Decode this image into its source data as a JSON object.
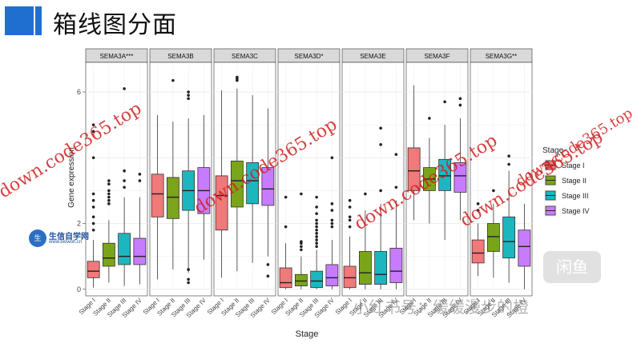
{
  "page": {
    "title": "箱线图分面"
  },
  "chart_data": {
    "type": "boxplot",
    "xlabel": "Stage",
    "ylabel": "Gene expression",
    "ylim": [
      -0.2,
      6.9
    ],
    "yticks": [
      0,
      2,
      6
    ],
    "categories": [
      "Stage I",
      "Stage II",
      "Stage III",
      "Stage IV"
    ],
    "legend": {
      "title": "Stage",
      "position": "right",
      "entries": [
        "Stage I",
        "Stage II",
        "Stage III",
        "Stage IV"
      ]
    },
    "colors": {
      "Stage I": "#f0797a",
      "Stage II": "#7aa51a",
      "Stage III": "#1cb7be",
      "Stage IV": "#c77cff"
    },
    "facets": [
      {
        "name": "SEMA3A***",
        "boxes": [
          {
            "stage": "Stage I",
            "lo": 0.05,
            "q1": 0.35,
            "med": 0.55,
            "q3": 0.85,
            "hi": 1.5,
            "outliers": [
              1.8,
              2.0,
              2.2,
              2.5,
              2.7,
              2.9,
              4.0,
              4.8,
              5.0
            ]
          },
          {
            "stage": "Stage II",
            "lo": 0.2,
            "q1": 0.7,
            "med": 0.95,
            "q3": 1.4,
            "hi": 2.1,
            "outliers": [
              2.6,
              2.7,
              2.8,
              2.9,
              3.0,
              3.2,
              3.3
            ]
          },
          {
            "stage": "Stage III",
            "lo": 0.1,
            "q1": 0.75,
            "med": 1.0,
            "q3": 1.7,
            "hi": 2.8,
            "outliers": [
              3.1,
              3.3,
              3.6,
              6.1
            ]
          },
          {
            "stage": "Stage IV",
            "lo": 0.15,
            "q1": 0.75,
            "med": 1.0,
            "q3": 1.55,
            "hi": 2.8,
            "outliers": [
              3.3,
              3.5
            ]
          }
        ]
      },
      {
        "name": "SEMA3B",
        "boxes": [
          {
            "stage": "Stage I",
            "lo": 0.3,
            "q1": 2.2,
            "med": 2.9,
            "q3": 3.5,
            "hi": 5.3,
            "outliers": []
          },
          {
            "stage": "Stage II",
            "lo": 0.6,
            "q1": 2.15,
            "med": 2.8,
            "q3": 3.4,
            "hi": 5.1,
            "outliers": [
              6.35
            ]
          },
          {
            "stage": "Stage III",
            "lo": 0.5,
            "q1": 2.4,
            "med": 3.0,
            "q3": 3.6,
            "hi": 5.2,
            "outliers": [
              0.2,
              0.3,
              0.6,
              5.8,
              5.9,
              6.0
            ]
          },
          {
            "stage": "Stage IV",
            "lo": 0.9,
            "q1": 2.3,
            "med": 3.0,
            "q3": 3.7,
            "hi": 5.3,
            "outliers": []
          }
        ]
      },
      {
        "name": "SEMA3C",
        "boxes": [
          {
            "stage": "Stage I",
            "lo": 0.35,
            "q1": 1.8,
            "med": 2.85,
            "q3": 3.45,
            "hi": 6.05,
            "outliers": []
          },
          {
            "stage": "Stage II",
            "lo": 0.55,
            "q1": 2.5,
            "med": 3.3,
            "q3": 3.9,
            "hi": 6.1,
            "outliers": [
              6.35,
              6.4,
              6.45
            ]
          },
          {
            "stage": "Stage III",
            "lo": 0.8,
            "q1": 2.6,
            "med": 3.3,
            "q3": 3.85,
            "hi": 5.9,
            "outliers": []
          },
          {
            "stage": "Stage IV",
            "lo": 1.0,
            "q1": 2.55,
            "med": 3.05,
            "q3": 3.7,
            "hi": 5.5,
            "outliers": [
              0.75,
              0.4
            ]
          }
        ]
      },
      {
        "name": "SEMA3D*",
        "boxes": [
          {
            "stage": "Stage I",
            "lo": 0.0,
            "q1": 0.05,
            "med": 0.2,
            "q3": 0.65,
            "hi": 1.4,
            "outliers": [
              1.9,
              2.8
            ]
          },
          {
            "stage": "Stage II",
            "lo": 0.0,
            "q1": 0.1,
            "med": 0.25,
            "q3": 0.45,
            "hi": 1.0,
            "outliers": [
              1.2,
              1.3,
              1.4,
              1.45,
              2.9
            ]
          },
          {
            "stage": "Stage III",
            "lo": 0.0,
            "q1": 0.05,
            "med": 0.25,
            "q3": 0.55,
            "hi": 1.2,
            "outliers": [
              1.3,
              1.4,
              1.5,
              1.6,
              1.7,
              1.8,
              1.9,
              2.0,
              2.1,
              2.3,
              2.5,
              2.8
            ]
          },
          {
            "stage": "Stage IV",
            "lo": 0.0,
            "q1": 0.1,
            "med": 0.35,
            "q3": 0.75,
            "hi": 1.5,
            "outliers": [
              1.9,
              2.0,
              2.1,
              2.4,
              2.6,
              4.0
            ]
          }
        ]
      },
      {
        "name": "SEMA3E",
        "boxes": [
          {
            "stage": "Stage I",
            "lo": 0.0,
            "q1": 0.05,
            "med": 0.35,
            "q3": 0.7,
            "hi": 1.6,
            "outliers": [
              1.9,
              2.1,
              2.2,
              2.5,
              2.7
            ]
          },
          {
            "stage": "Stage II",
            "lo": 0.0,
            "q1": 0.15,
            "med": 0.5,
            "q3": 1.15,
            "hi": 2.4,
            "outliers": [
              2.9
            ]
          },
          {
            "stage": "Stage III",
            "lo": 0.0,
            "q1": 0.15,
            "med": 0.45,
            "q3": 1.15,
            "hi": 2.6,
            "outliers": [
              3.0,
              4.4,
              4.9
            ]
          },
          {
            "stage": "Stage IV",
            "lo": 0.0,
            "q1": 0.2,
            "med": 0.55,
            "q3": 1.25,
            "hi": 2.7,
            "outliers": [
              3.1,
              4.1
            ]
          }
        ]
      },
      {
        "name": "SEMA3F",
        "boxes": [
          {
            "stage": "Stage I",
            "lo": 2.1,
            "q1": 3.0,
            "med": 3.6,
            "q3": 4.3,
            "hi": 6.2,
            "outliers": []
          },
          {
            "stage": "Stage II",
            "lo": 2.0,
            "q1": 3.0,
            "med": 3.35,
            "q3": 3.7,
            "hi": 4.6,
            "outliers": [
              5.2
            ]
          },
          {
            "stage": "Stage III",
            "lo": 1.5,
            "q1": 3.0,
            "med": 3.45,
            "q3": 3.95,
            "hi": 5.0,
            "outliers": [
              5.7
            ]
          },
          {
            "stage": "Stage IV",
            "lo": 2.1,
            "q1": 2.95,
            "med": 3.45,
            "q3": 3.85,
            "hi": 5.2,
            "outliers": [
              5.6,
              5.8
            ]
          }
        ]
      },
      {
        "name": "SEMA3G**",
        "boxes": [
          {
            "stage": "Stage I",
            "lo": 0.4,
            "q1": 0.8,
            "med": 1.1,
            "q3": 1.5,
            "hi": 2.0,
            "outliers": [
              2.4,
              2.6
            ]
          },
          {
            "stage": "Stage II",
            "lo": 0.35,
            "q1": 1.15,
            "med": 1.6,
            "q3": 2.0,
            "hi": 2.6,
            "outliers": [
              3.0
            ]
          },
          {
            "stage": "Stage III",
            "lo": 0.2,
            "q1": 0.95,
            "med": 1.45,
            "q3": 2.2,
            "hi": 3.6,
            "outliers": [
              3.8,
              4.05
            ]
          },
          {
            "stage": "Stage IV",
            "lo": 0.0,
            "q1": 0.7,
            "med": 1.3,
            "q3": 1.8,
            "hi": 2.6,
            "outliers": []
          }
        ]
      }
    ]
  },
  "overlays": {
    "watermarks": [
      "down.code365.top",
      "down.code365.top",
      "down.code365.top",
      "down.code365.top",
      "down.code365.top"
    ],
    "logo_badge": "生",
    "logo_text": "生信自学网",
    "logo_url": "www.biowolf.cn",
    "corner_logo": "闲鱼",
    "footer_watermark": "小红书号：缓缓漫步的橙"
  }
}
